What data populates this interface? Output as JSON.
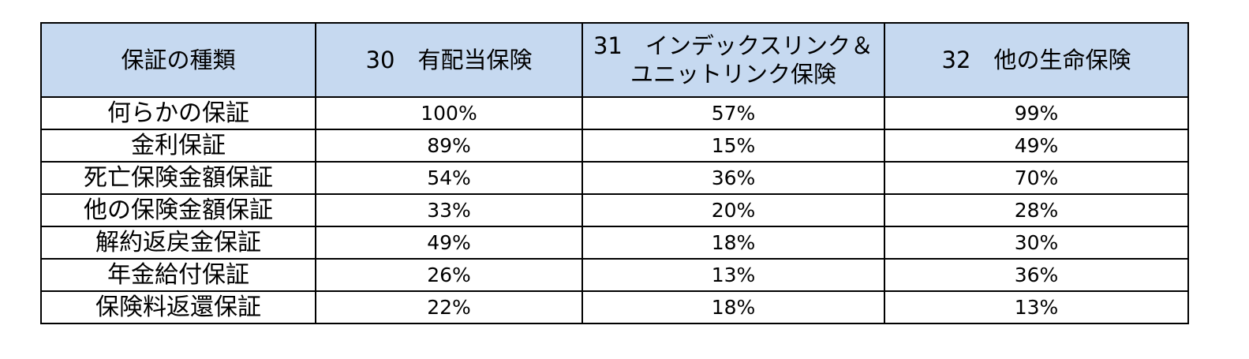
{
  "table": {
    "headers": {
      "type": "保証の種類",
      "col1": "30　有配当保険",
      "col2_line1": "31　インデックスリンク＆",
      "col2_line2": "ユニットリンク保険",
      "col3": "32　他の生命保険"
    },
    "header_background": "#c6d9f0",
    "rows": [
      {
        "label": "何らかの保証",
        "values": [
          "100%",
          "57%",
          "99%"
        ]
      },
      {
        "label": "金利保証",
        "values": [
          "89%",
          "15%",
          "49%"
        ]
      },
      {
        "label": "死亡保険金額保証",
        "values": [
          "54%",
          "36%",
          "70%"
        ]
      },
      {
        "label": "他の保険金額保証",
        "values": [
          "33%",
          "20%",
          "28%"
        ]
      },
      {
        "label": "解約返戻金保証",
        "values": [
          "49%",
          "18%",
          "30%"
        ]
      },
      {
        "label": "年金給付保証",
        "values": [
          "26%",
          "13%",
          "36%"
        ]
      },
      {
        "label": "保険料返還保証",
        "values": [
          "22%",
          "18%",
          "13%"
        ]
      }
    ]
  }
}
